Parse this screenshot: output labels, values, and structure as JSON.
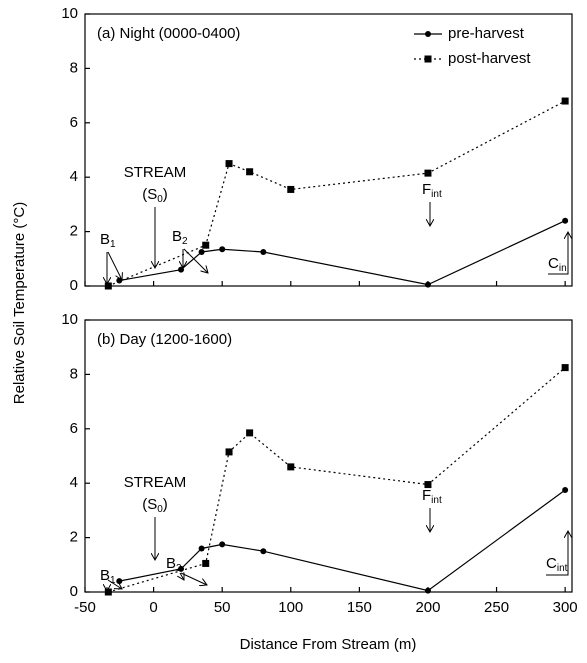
{
  "chart_data": [
    {
      "type": "line",
      "title": "(a) Night (0000-0400)",
      "ylabel": "Relative Soil Temperature (°C)",
      "xlim": [
        -50,
        305
      ],
      "xticks": [
        -50,
        0,
        50,
        100,
        150,
        200,
        250,
        300
      ],
      "xticklabels": false,
      "ylim": [
        0,
        10
      ],
      "yticks": [
        0,
        2,
        4,
        6,
        8,
        10
      ],
      "legend": "upper right",
      "series": [
        {
          "name": "pre-harvest",
          "color": "#000000",
          "linestyle": "solid",
          "marker": "circle",
          "x": [
            -25,
            20,
            35,
            50,
            80,
            200,
            300
          ],
          "values": [
            0.2,
            0.6,
            1.25,
            1.35,
            1.25,
            0.05,
            2.4
          ]
        },
        {
          "name": "post-harvest",
          "color": "#000000",
          "linestyle": "dotted",
          "marker": "square",
          "x": [
            -33,
            38,
            55,
            70,
            100,
            200,
            300
          ],
          "values": [
            0,
            1.5,
            4.5,
            4.2,
            3.55,
            4.15,
            6.8
          ]
        }
      ],
      "annotations": {
        "stream": "STREAM",
        "s0": [
          "(S",
          "0",
          ")"
        ],
        "b1": [
          "B",
          "1"
        ],
        "b2": [
          "B",
          "2"
        ],
        "f": [
          "F",
          "int"
        ],
        "c": [
          "C",
          "in"
        ]
      }
    },
    {
      "type": "line",
      "title": "(b) Day (1200-1600)",
      "xlabel": "Distance From Stream (m)",
      "xlim": [
        -50,
        305
      ],
      "xticks": [
        -50,
        0,
        50,
        100,
        150,
        200,
        250,
        300
      ],
      "xticklabels": true,
      "ylim": [
        0,
        10
      ],
      "yticks": [
        0,
        2,
        4,
        6,
        8,
        10
      ],
      "series": [
        {
          "color": "#000000",
          "linestyle": "solid",
          "marker": "circle",
          "x": [
            -25,
            20,
            35,
            50,
            80,
            200,
            300
          ],
          "values": [
            0.4,
            0.85,
            1.6,
            1.75,
            1.5,
            0.05,
            3.75
          ]
        },
        {
          "color": "#000000",
          "linestyle": "dotted",
          "marker": "square",
          "x": [
            -33,
            38,
            55,
            70,
            100,
            200,
            300
          ],
          "values": [
            0,
            1.05,
            5.15,
            5.85,
            4.6,
            3.95,
            8.25
          ]
        }
      ],
      "annotations": {
        "stream": "STREAM",
        "s0": [
          "(S",
          "0",
          ")"
        ],
        "b1": [
          "B",
          "1"
        ],
        "b2": [
          "B",
          "2"
        ],
        "f": [
          "F",
          "int"
        ],
        "c": [
          "C",
          "int"
        ]
      }
    }
  ]
}
